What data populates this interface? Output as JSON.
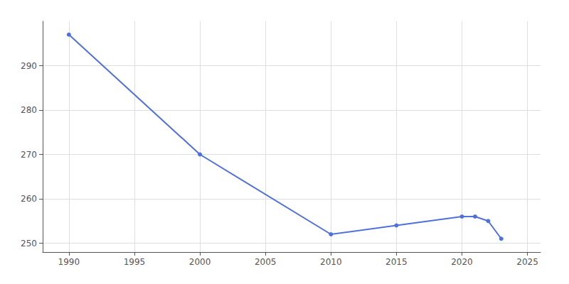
{
  "chart_data": {
    "type": "line",
    "x": [
      1990,
      2000,
      2010,
      2015,
      2020,
      2021,
      2022,
      2023
    ],
    "values": [
      297,
      270,
      252,
      254,
      256,
      256,
      255,
      251
    ],
    "xlim": [
      1988,
      2026
    ],
    "xticks": [
      1990,
      1995,
      2000,
      2005,
      2010,
      2015,
      2020,
      2025
    ],
    "ylim": [
      248,
      300
    ],
    "yticks": [
      250,
      260,
      270,
      280,
      290
    ],
    "grid": true,
    "marker": "circle"
  }
}
